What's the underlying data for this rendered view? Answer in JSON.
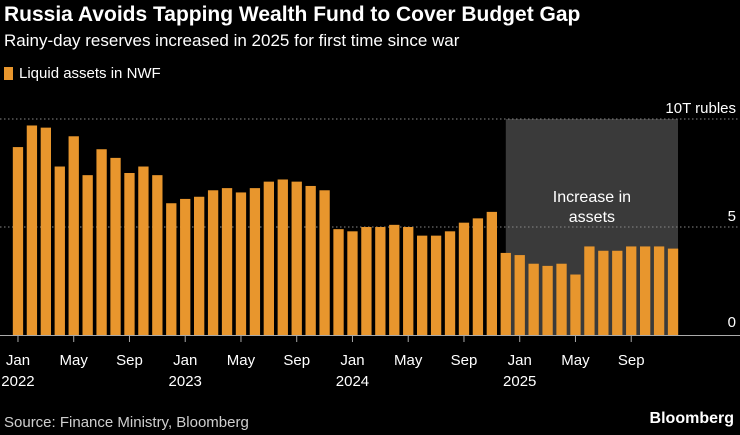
{
  "title": "Russia Avoids Tapping Wealth Fund to Cover Budget Gap",
  "subtitle": "Rainy-day reserves increased in 2025 for first time since war",
  "legend": "Liquid assets in NWF",
  "source": "Source: Finance Ministry, Bloomberg",
  "brand": "Bloomberg",
  "colors": {
    "bar": "#e8962d",
    "highlight": "#3a3a3a",
    "background": "#000000",
    "grid": "#888888"
  },
  "chart_data": {
    "type": "bar",
    "title": "Russia Avoids Tapping Wealth Fund to Cover Budget Gap",
    "series": [
      {
        "name": "Liquid assets in NWF",
        "values": [
          8.7,
          9.7,
          9.6,
          7.8,
          9.2,
          7.4,
          8.6,
          8.2,
          7.5,
          7.8,
          7.4,
          6.1,
          6.3,
          6.4,
          6.7,
          6.8,
          6.6,
          6.8,
          7.1,
          7.2,
          7.1,
          6.9,
          6.7,
          4.9,
          4.8,
          5.0,
          5.0,
          5.1,
          5.0,
          4.6,
          4.6,
          4.8,
          5.2,
          5.4,
          5.7,
          3.8,
          3.7,
          3.3,
          3.2,
          3.3,
          2.8,
          4.1,
          3.9,
          3.9,
          4.1,
          4.1,
          4.1,
          4.0
        ]
      }
    ],
    "x_tick_labels": [
      {
        "index": 0,
        "month": "Jan",
        "year": "2022"
      },
      {
        "index": 4,
        "month": "May",
        "year": ""
      },
      {
        "index": 8,
        "month": "Sep",
        "year": ""
      },
      {
        "index": 12,
        "month": "Jan",
        "year": "2023"
      },
      {
        "index": 16,
        "month": "May",
        "year": ""
      },
      {
        "index": 20,
        "month": "Sep",
        "year": ""
      },
      {
        "index": 24,
        "month": "Jan",
        "year": "2024"
      },
      {
        "index": 28,
        "month": "May",
        "year": ""
      },
      {
        "index": 32,
        "month": "Sep",
        "year": ""
      },
      {
        "index": 36,
        "month": "Jan",
        "year": "2025"
      },
      {
        "index": 40,
        "month": "May",
        "year": ""
      },
      {
        "index": 44,
        "month": "Sep",
        "year": ""
      }
    ],
    "y_ticks": [
      {
        "value": 10,
        "label": "10T rubles"
      },
      {
        "value": 5,
        "label": "5"
      },
      {
        "value": 0,
        "label": "0"
      }
    ],
    "ylim": [
      0,
      10
    ],
    "xlabel": "",
    "ylabel": "",
    "annotation": {
      "text_lines": [
        "Increase in",
        "assets"
      ],
      "start_index": 35,
      "end_index": 47
    },
    "grid": true
  }
}
